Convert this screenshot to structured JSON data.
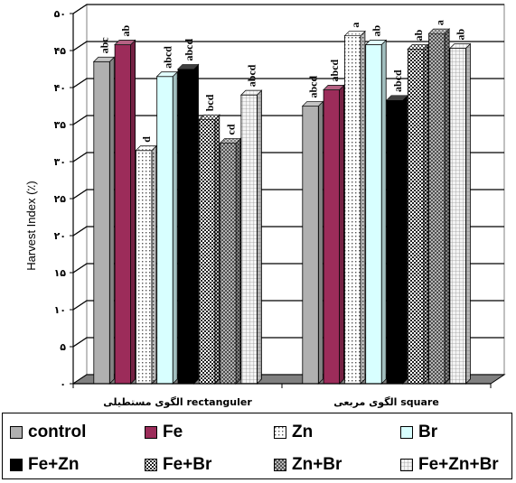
{
  "chart_data": {
    "type": "bar",
    "ylabel": "Harvest Index (٪)",
    "ylim": [
      0,
      50
    ],
    "yticks": [
      0,
      5,
      10,
      15,
      20,
      25,
      30,
      35,
      40,
      45,
      50
    ],
    "ytick_labels": [
      "۰",
      "۵",
      "۱۰",
      "۱۵",
      "۲۰",
      "۲۵",
      "۳۰",
      "۳۵",
      "۴۰",
      "۴۵",
      "۵۰"
    ],
    "grid": true,
    "legend_position": "bottom",
    "categories": [
      "الگوی مستطیلی rectanguler",
      "الگوی مربعی square"
    ],
    "series": [
      {
        "name": "control",
        "values": [
          43.5,
          37.5
        ],
        "letters": [
          "abc",
          "abcd"
        ],
        "color": "#b0b0b0",
        "pattern": "solid"
      },
      {
        "name": "Fe",
        "values": [
          45.8,
          39.7
        ],
        "letters": [
          "ab",
          "abcd"
        ],
        "color": "#9c2c5a",
        "pattern": "solid"
      },
      {
        "name": "Zn",
        "values": [
          31.5,
          47.0
        ],
        "letters": [
          "d",
          "a"
        ],
        "color": "#ffffff",
        "pattern": "dots"
      },
      {
        "name": "Br",
        "values": [
          41.5,
          45.8
        ],
        "letters": [
          "abcd",
          "ab"
        ],
        "color": "#d8ffff",
        "pattern": "solid"
      },
      {
        "name": "Fe+Zn",
        "values": [
          42.5,
          38.3
        ],
        "letters": [
          "abcd",
          "abcd"
        ],
        "color": "#000000",
        "pattern": "solid"
      },
      {
        "name": "Fe+Br",
        "values": [
          35.7,
          45.2
        ],
        "letters": [
          "bcd",
          "ab"
        ],
        "color": "#555555",
        "pattern": "checker"
      },
      {
        "name": "Zn+Br",
        "values": [
          32.5,
          47.3
        ],
        "letters": [
          "cd",
          "a"
        ],
        "color": "#888888",
        "pattern": "crosshatch"
      },
      {
        "name": "Fe+Zn+Br",
        "values": [
          39.0,
          45.3
        ],
        "letters": [
          "abcd",
          "ab"
        ],
        "color": "#d4d4d4",
        "pattern": "grid"
      }
    ]
  }
}
